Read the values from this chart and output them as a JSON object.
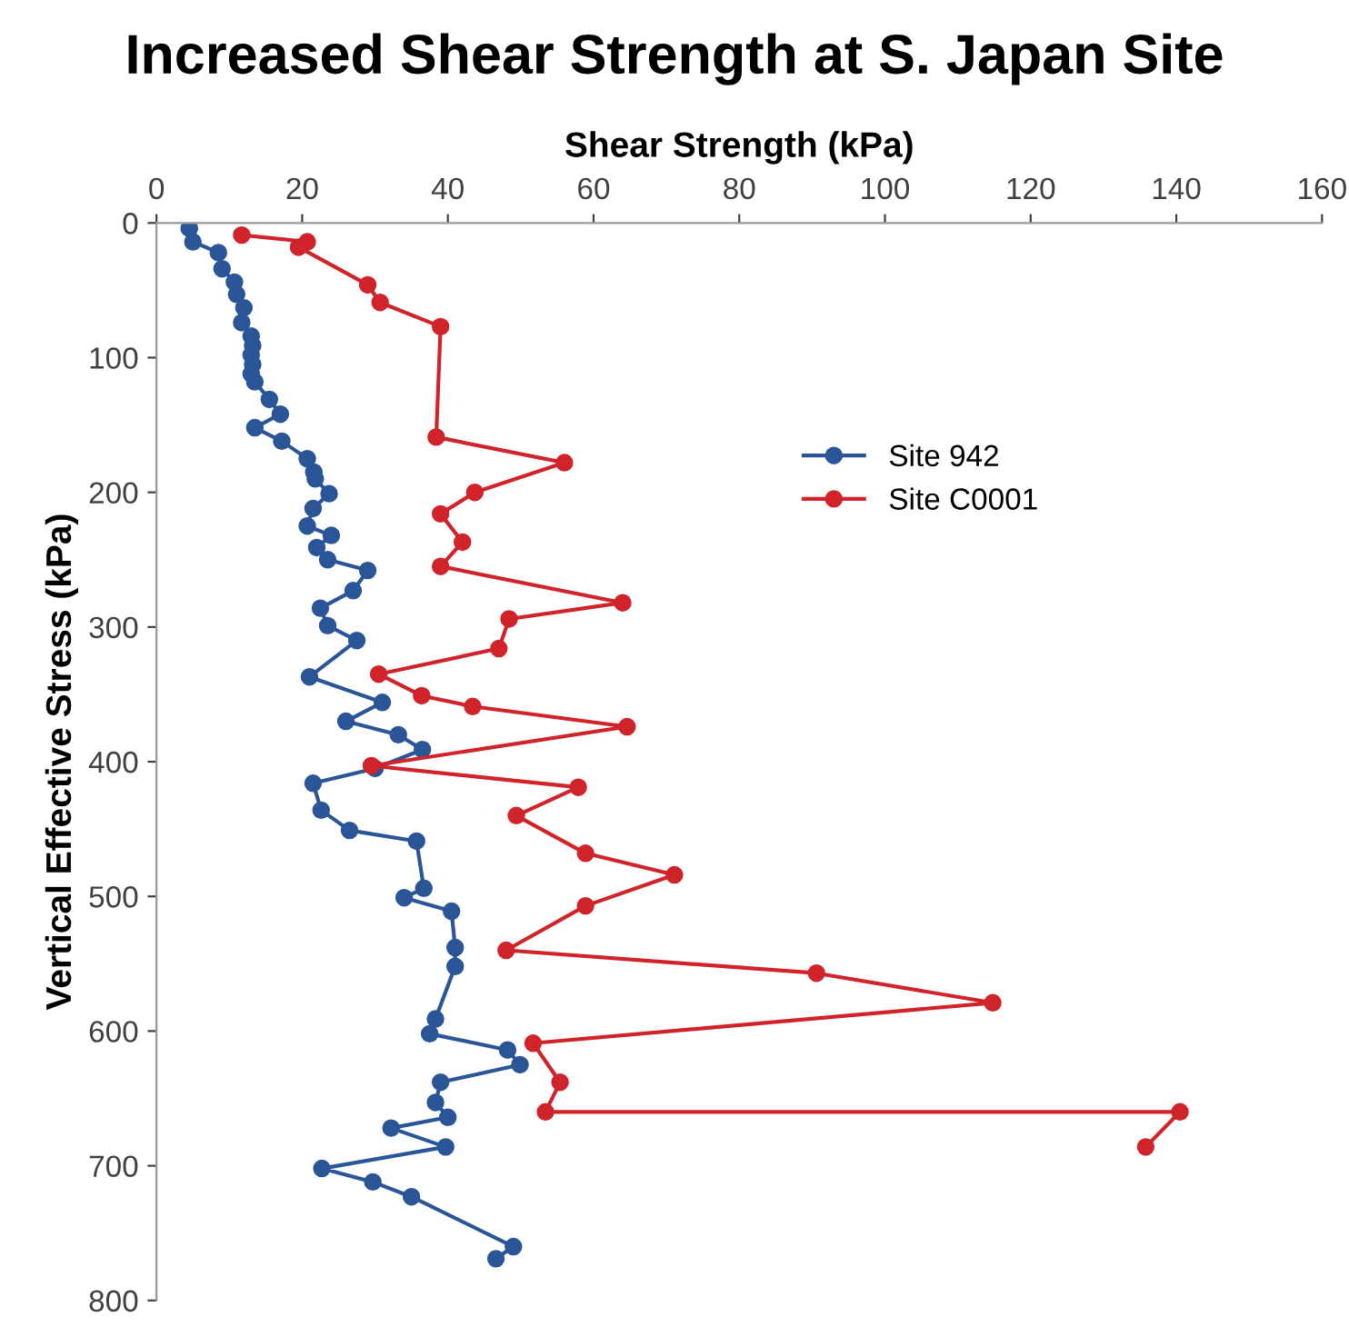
{
  "chart_data": {
    "type": "line",
    "title": "Increased Shear Strength at S. Japan Site",
    "xlabel": "Shear Strength (kPa)",
    "ylabel": "Vertical Effective Stress (kPa)",
    "xlim": [
      0,
      160
    ],
    "xticks": [
      0,
      20,
      40,
      60,
      80,
      100,
      120,
      140,
      160
    ],
    "ylim": [
      800,
      0
    ],
    "yticks": [
      0,
      100,
      200,
      300,
      400,
      500,
      600,
      700,
      800
    ],
    "grid": false,
    "legend": "top right",
    "marker": "circle",
    "line_style": "solid",
    "series": [
      {
        "name": "Site 942",
        "color": "#2a5597",
        "x": [
          4.5,
          5,
          8.5,
          9,
          10.7,
          11,
          12,
          11.7,
          13,
          13.2,
          13,
          13.2,
          13,
          13.5,
          15.5,
          17,
          13.5,
          17.2,
          20.7,
          21.6,
          21.8,
          23.7,
          21.5,
          20.7,
          24,
          22,
          23.5,
          29,
          27,
          22.5,
          23.5,
          27.5,
          21,
          31,
          26,
          33.2,
          36.5,
          30,
          21.5,
          22.6,
          26.5,
          35.7,
          36.7,
          34,
          40.5,
          41,
          41,
          38.3,
          37.5,
          48.2,
          49.9,
          39,
          38.3,
          40,
          32.2,
          39.7,
          22.7,
          29.7,
          35,
          49,
          46.6
        ],
        "values": [
          4,
          14,
          22,
          34,
          44,
          53,
          63,
          74,
          84,
          91,
          98,
          105,
          112,
          118,
          131,
          142,
          152,
          162,
          175,
          185,
          190,
          201,
          212,
          225,
          232,
          241,
          250,
          258,
          273,
          286,
          299,
          310,
          337,
          356,
          370,
          380,
          391,
          405,
          416,
          436,
          451,
          459,
          494,
          501,
          511,
          538,
          552,
          591,
          602,
          614,
          625,
          638,
          653,
          664,
          672,
          686,
          702,
          712,
          723,
          760,
          769
        ]
      },
      {
        "name": "Site C0001",
        "color": "#d0232a",
        "x": [
          11.7,
          20.7,
          19.5,
          29,
          30.7,
          39,
          38.4,
          56,
          43.7,
          39,
          42,
          39,
          64,
          48.4,
          47,
          30.5,
          36.4,
          43.4,
          64.6,
          29.5,
          57.9,
          49.4,
          58.9,
          71.1,
          58.9,
          48,
          90.6,
          114.8,
          51.7,
          55.4,
          53.4,
          140.5,
          135.8
        ],
        "values": [
          9,
          14,
          18,
          46,
          59,
          77,
          159,
          178,
          200,
          216,
          237,
          255,
          282,
          294,
          316,
          335,
          351,
          359,
          374,
          403,
          419,
          440,
          468,
          484,
          507,
          540,
          557,
          579,
          609,
          638,
          660,
          660,
          686
        ]
      }
    ]
  }
}
